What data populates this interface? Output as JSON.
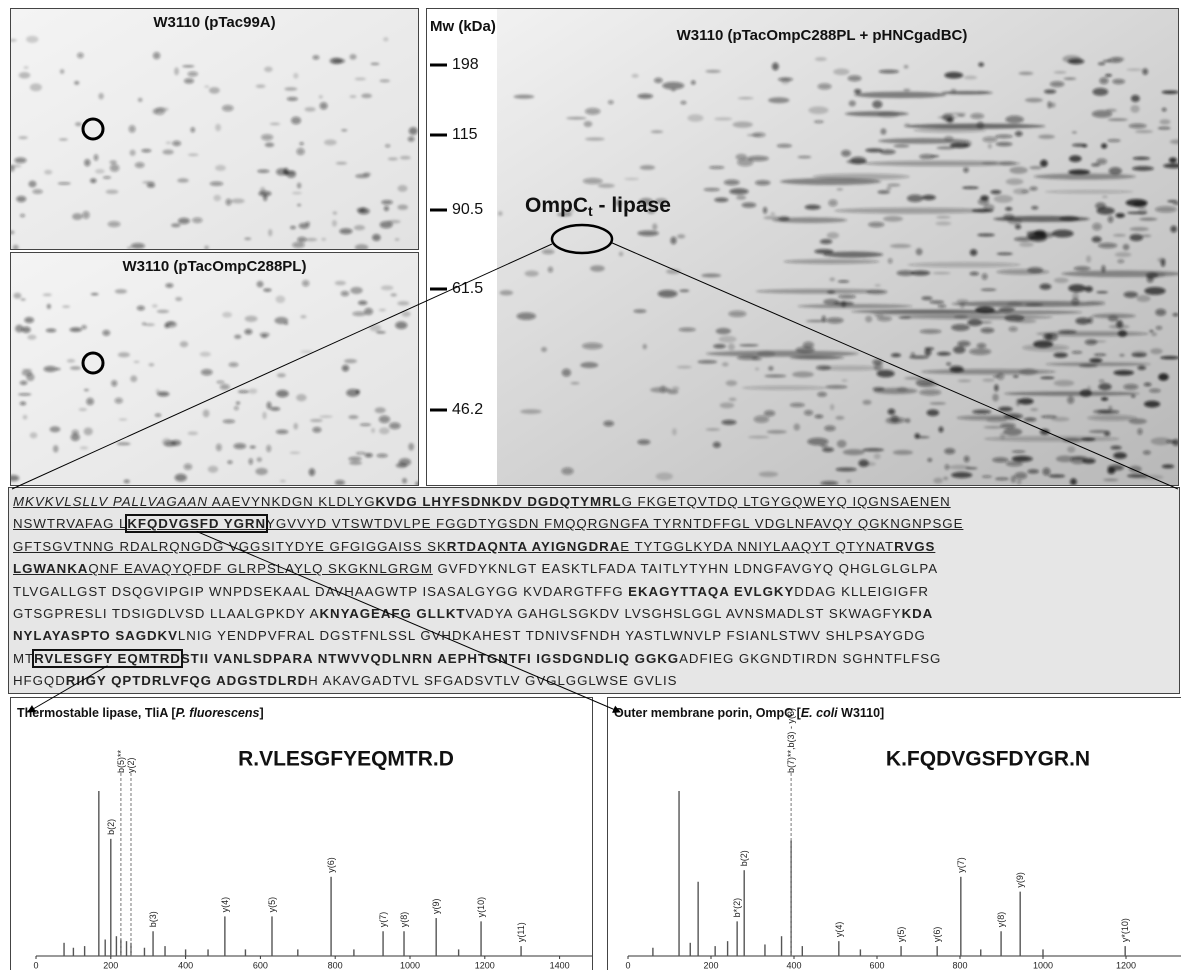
{
  "gels": [
    {
      "title": "W3110 (pTac99A)"
    },
    {
      "title": "W3110 (pTacOmpC288PL)"
    },
    {
      "title": "W3110 (pTacOmpC288PL + pHNCgadBC)",
      "axis_label": "Mw (kDa)",
      "mw_markers": [
        198,
        115,
        90.5,
        61.5,
        46.2
      ],
      "annotation": {
        "main": "OmpC",
        "subscript": "t",
        "rest": " - lipase"
      }
    }
  ],
  "sequence": {
    "lines": [
      [
        {
          "text": "MKVKVLSLLV PALLVAGAAN",
          "italic": true,
          "underline": true
        },
        {
          "text": " AAEVYNKDGN KLDLYG",
          "underline": true
        },
        {
          "text": "KVDG LHYFSDNKDV DGDQTYMRL",
          "bold": true,
          "underline": true
        },
        {
          "text": "G FKGETQVTDQ LTGYGQWEYQ IQGNSAENEN",
          "underline": true
        }
      ],
      [
        {
          "text": "NSWTRVAFAG L",
          "underline": true
        },
        {
          "text": "KFQDVGSFD YGRN",
          "bold": true,
          "underline": true,
          "boxed": true
        },
        {
          "text": "YGVVYD VTSWTDVLPE FGGDTYGSDN FMQQRGNGFA TYRNTDFFGL VDGLNFAVQY QGKNGNPSGE",
          "underline": true
        }
      ],
      [
        {
          "text": "GFTSGVTNNG RDALRQNGDG VGGSITYDYE GFGIGGAISS SK",
          "underline": true
        },
        {
          "text": "RTDAQNTA AYIGNGDRA",
          "bold": true,
          "underline": true
        },
        {
          "text": "E TYTGGLKYDA NNIYLAAQYT QTYNAT",
          "underline": true
        },
        {
          "text": "RVGS",
          "bold": true,
          "underline": true
        }
      ],
      [
        {
          "text": "LGWANKA",
          "bold": true,
          "underline": true
        },
        {
          "text": "QNF EAVAQYQFDF GLRPSLAYLQ SKGKNLGRGM",
          "underline": true
        },
        {
          "text": " GVFDYKNLGT EASKTLFADA TAITLYTYHN LDNGFAVGYQ QHGLGLGLPA"
        }
      ],
      [
        {
          "text": "TLVGALLGST DSQGVIPGIP WNPDSEKAAL DAVHAAGWTP ISASALGYGG KVDARGTFFG "
        },
        {
          "text": "EKAGYTTAQA EVLGKY",
          "bold": true
        },
        {
          "text": "DDAG KLLEIGIGFR"
        }
      ],
      [
        {
          "text": "GTSGPRESLI TDSIGDLVSD LLAALGPKDY A"
        },
        {
          "text": "KNYAGEAFG GLLKT",
          "bold": true
        },
        {
          "text": "VADYA GAHGLSGKDV LVSGHSLGGL AVNSMADLST SKWAGFY"
        },
        {
          "text": "KDA",
          "bold": true
        }
      ],
      [
        {
          "text": "NYLAYASPTO SAGDKV",
          "bold": true
        },
        {
          "text": "LNIG YENDPVFRAL DGSTFNLSSL GVHDKAHEST TDNIVSFNDH YASTLWNVLP FSIANLSTWV SHLPSAYGDG"
        }
      ],
      [
        {
          "text": "MT"
        },
        {
          "text": "RVLESGFY EQMTRD",
          "bold": true,
          "boxed": true
        },
        {
          "text": "STII VANLSDPARA NTWVVQDLNRN AEPHTGNTFI IGSDGNDLIQ GGKG",
          "bold": true
        },
        {
          "text": "ADFIEG GKGNDTIRDN SGHNTFLFSG"
        }
      ],
      [
        {
          "text": "HFGQD"
        },
        {
          "text": "RIIGY QPTDRLVFQG ADGSTDLRD",
          "bold": true
        },
        {
          "text": "H AKAVGADTVL SFGADSVTLV GVGLGGLWSE GVLIS"
        }
      ]
    ]
  },
  "spectra": [
    {
      "title": [
        {
          "text": "Thermostable lipase, TliA ["
        },
        {
          "text": "P. fluorescens",
          "italic": true
        },
        {
          "text": "]"
        }
      ],
      "peptide": "R.VLESGFYEQMTR.D",
      "xlim": [
        0,
        1480
      ],
      "xticks": [
        0,
        200,
        400,
        600,
        800,
        1000,
        1200,
        1400
      ],
      "peaks": [
        {
          "mz": 75,
          "intensity": 8
        },
        {
          "mz": 100,
          "intensity": 5
        },
        {
          "mz": 130,
          "intensity": 6
        },
        {
          "mz": 168,
          "intensity": 100
        },
        {
          "mz": 185,
          "intensity": 10
        },
        {
          "mz": 200,
          "intensity": 71,
          "label": "b(2)"
        },
        {
          "mz": 215,
          "intensity": 12
        },
        {
          "mz": 227,
          "intensity": 10,
          "label": "b(5)**",
          "dashed": true
        },
        {
          "mz": 242,
          "intensity": 9
        },
        {
          "mz": 254,
          "intensity": 8,
          "label": "y(2)",
          "dashed": true
        },
        {
          "mz": 290,
          "intensity": 5
        },
        {
          "mz": 313,
          "intensity": 15,
          "label": "b(3)"
        },
        {
          "mz": 345,
          "intensity": 6
        },
        {
          "mz": 400,
          "intensity": 4
        },
        {
          "mz": 460,
          "intensity": 4
        },
        {
          "mz": 505,
          "intensity": 24,
          "label": "y(4)"
        },
        {
          "mz": 560,
          "intensity": 4
        },
        {
          "mz": 631,
          "intensity": 24,
          "label": "y(5)"
        },
        {
          "mz": 700,
          "intensity": 4
        },
        {
          "mz": 789,
          "intensity": 48,
          "label": "y(6)"
        },
        {
          "mz": 850,
          "intensity": 4
        },
        {
          "mz": 928,
          "intensity": 15,
          "label": "y(7)"
        },
        {
          "mz": 984,
          "intensity": 15,
          "label": "y(8)"
        },
        {
          "mz": 1070,
          "intensity": 23,
          "label": "y(9)"
        },
        {
          "mz": 1130,
          "intensity": 4
        },
        {
          "mz": 1190,
          "intensity": 21,
          "label": "y(10)"
        },
        {
          "mz": 1297,
          "intensity": 6,
          "label": "y(11)"
        }
      ]
    },
    {
      "title": [
        {
          "text": "Outer membrane porin, OmpC ["
        },
        {
          "text": "E. coli",
          "italic": true
        },
        {
          "text": " W3110]"
        }
      ],
      "peptide": "K.FQDVGSFDYGR.N",
      "xlim": [
        0,
        1330
      ],
      "xticks": [
        0,
        200,
        400,
        600,
        800,
        1000,
        1200
      ],
      "peaks": [
        {
          "mz": 60,
          "intensity": 5
        },
        {
          "mz": 123,
          "intensity": 100
        },
        {
          "mz": 150,
          "intensity": 8
        },
        {
          "mz": 169,
          "intensity": 45
        },
        {
          "mz": 210,
          "intensity": 6
        },
        {
          "mz": 240,
          "intensity": 9
        },
        {
          "mz": 263,
          "intensity": 21,
          "label": "b*(2)"
        },
        {
          "mz": 280,
          "intensity": 52,
          "label": "b(2)"
        },
        {
          "mz": 330,
          "intensity": 7
        },
        {
          "mz": 370,
          "intensity": 12
        },
        {
          "mz": 393,
          "intensity": 70,
          "label": "b(7)**,b(3) - y(3)",
          "dashed": true
        },
        {
          "mz": 420,
          "intensity": 6
        },
        {
          "mz": 508,
          "intensity": 9,
          "label": "y(4)"
        },
        {
          "mz": 560,
          "intensity": 4
        },
        {
          "mz": 658,
          "intensity": 6,
          "label": "y(5)"
        },
        {
          "mz": 745,
          "intensity": 6,
          "label": "y(6)"
        },
        {
          "mz": 802,
          "intensity": 48,
          "label": "y(7)"
        },
        {
          "mz": 850,
          "intensity": 4
        },
        {
          "mz": 899,
          "intensity": 15,
          "label": "y(8)"
        },
        {
          "mz": 945,
          "intensity": 39,
          "label": "y(9)"
        },
        {
          "mz": 1000,
          "intensity": 4
        },
        {
          "mz": 1198,
          "intensity": 6,
          "label": "y*(10)"
        }
      ]
    }
  ]
}
